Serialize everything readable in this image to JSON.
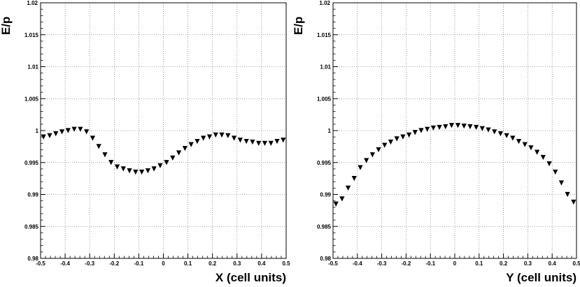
{
  "chart_data": [
    {
      "type": "scatter",
      "marker": "triangle-down",
      "color": "#000000",
      "grid": true,
      "xlabel": "X (cell units)",
      "ylabel": "E/p",
      "xlim": [
        -0.5,
        0.5
      ],
      "ylim": [
        0.98,
        1.02
      ],
      "xticks": [
        -0.5,
        -0.4,
        -0.3,
        -0.2,
        -0.1,
        0,
        0.1,
        0.2,
        0.3,
        0.4,
        0.5
      ],
      "xtick_labels": [
        "-0.5",
        "-0.4",
        "-0.3",
        "-0.2",
        "-0.1",
        "0",
        "0.1",
        "0.2",
        "0.3",
        "0.4",
        "0.5"
      ],
      "yticks": [
        0.98,
        0.985,
        0.99,
        0.995,
        1.0,
        1.005,
        1.01,
        1.015,
        1.02
      ],
      "ytick_labels": [
        "0.98",
        "0.985",
        "0.99",
        "0.995",
        "1",
        "1.005",
        "1.01",
        "1.015",
        "1.02"
      ],
      "x": [
        -0.488,
        -0.463,
        -0.438,
        -0.413,
        -0.388,
        -0.363,
        -0.338,
        -0.313,
        -0.288,
        -0.263,
        -0.238,
        -0.213,
        -0.188,
        -0.163,
        -0.138,
        -0.113,
        -0.088,
        -0.063,
        -0.038,
        -0.013,
        0.013,
        0.038,
        0.063,
        0.088,
        0.113,
        0.138,
        0.163,
        0.188,
        0.213,
        0.238,
        0.263,
        0.288,
        0.313,
        0.338,
        0.363,
        0.388,
        0.413,
        0.438,
        0.463,
        0.488
      ],
      "y": [
        0.999,
        0.9992,
        0.9995,
        0.9998,
        1.0,
        1.0002,
        1.0002,
        0.9998,
        0.9988,
        0.9975,
        0.9962,
        0.995,
        0.9943,
        0.994,
        0.9937,
        0.9935,
        0.9935,
        0.9937,
        0.994,
        0.9945,
        0.995,
        0.9957,
        0.9965,
        0.9972,
        0.9978,
        0.9983,
        0.9988,
        0.999,
        0.9993,
        0.9993,
        0.9992,
        0.9988,
        0.9985,
        0.9983,
        0.9982,
        0.998,
        0.998,
        0.998,
        0.9983,
        0.9985
      ]
    },
    {
      "type": "scatter",
      "marker": "triangle-down",
      "color": "#000000",
      "grid": true,
      "xlabel": "Y (cell units)",
      "ylabel": "E/p",
      "xlim": [
        -0.5,
        0.5
      ],
      "ylim": [
        0.98,
        1.02
      ],
      "xticks": [
        -0.5,
        -0.4,
        -0.3,
        -0.2,
        -0.1,
        0,
        0.1,
        0.2,
        0.3,
        0.4,
        0.5
      ],
      "xtick_labels": [
        "-0.5",
        "-0.4",
        "-0.3",
        "-0.2",
        "-0.1",
        "0",
        "0.1",
        "0.2",
        "0.3",
        "0.4",
        "0.5"
      ],
      "yticks": [
        0.98,
        0.985,
        0.99,
        0.995,
        1.0,
        1.005,
        1.01,
        1.015,
        1.02
      ],
      "ytick_labels": [
        "0.98",
        "0.985",
        "0.99",
        "0.995",
        "1",
        "1.005",
        "1.01",
        "1.015",
        "1.02"
      ],
      "x": [
        -0.488,
        -0.463,
        -0.438,
        -0.413,
        -0.388,
        -0.363,
        -0.338,
        -0.313,
        -0.288,
        -0.263,
        -0.238,
        -0.213,
        -0.188,
        -0.163,
        -0.138,
        -0.113,
        -0.088,
        -0.063,
        -0.038,
        -0.013,
        0.013,
        0.038,
        0.063,
        0.088,
        0.113,
        0.138,
        0.163,
        0.188,
        0.213,
        0.238,
        0.263,
        0.288,
        0.313,
        0.338,
        0.363,
        0.388,
        0.413,
        0.438,
        0.463,
        0.488
      ],
      "y": [
        0.9885,
        0.9893,
        0.991,
        0.9925,
        0.9942,
        0.9953,
        0.9962,
        0.997,
        0.9977,
        0.9982,
        0.9987,
        0.999,
        0.9993,
        0.9997,
        1.0,
        1.0002,
        1.0004,
        1.0005,
        1.0006,
        1.0008,
        1.0008,
        1.0007,
        1.0006,
        1.0005,
        1.0003,
        1.0001,
        0.9998,
        0.9995,
        0.9992,
        0.9988,
        0.9983,
        0.9978,
        0.9973,
        0.9966,
        0.9958,
        0.9948,
        0.9935,
        0.9918,
        0.99,
        0.9888
      ]
    }
  ]
}
